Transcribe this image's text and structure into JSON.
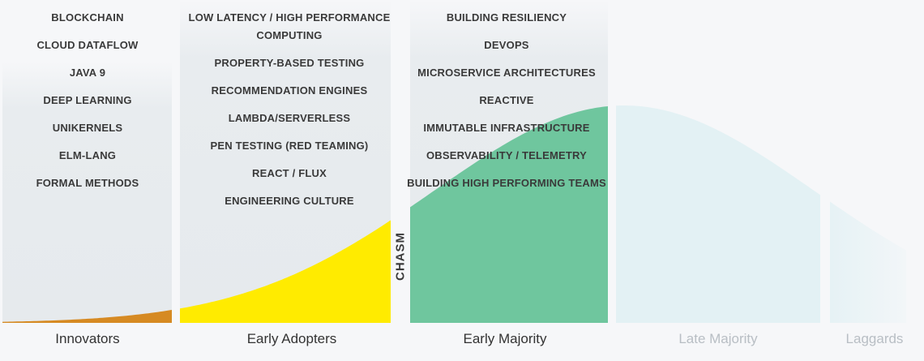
{
  "colors": {
    "innovators": "#d68a23",
    "early_adopters": "#ffeb00",
    "early_majority": "#6fc69e",
    "late_majority": "#e3f1f4",
    "laggards": "#e6f2f5",
    "column_bg": "#e6eaed",
    "text": "#3a3a3a",
    "faded_text": "#b8bec4"
  },
  "chasm_label": "CHASM",
  "segments": [
    {
      "id": "innovators",
      "label": "Innovators",
      "topics": [
        "BLOCKCHAIN",
        "CLOUD DATAFLOW",
        "JAVA 9",
        "DEEP LEARNING",
        "UNIKERNELS",
        "ELM-LANG",
        "FORMAL METHODS"
      ]
    },
    {
      "id": "early-adopters",
      "label": "Early Adopters",
      "topics": [
        "LOW LATENCY / HIGH PERFORMANCE",
        "COMPUTING",
        "PROPERTY-BASED TESTING",
        "RECOMMENDATION ENGINES",
        "LAMBDA/SERVERLESS",
        "PEN TESTING (RED TEAMING)",
        "REACT / FLUX",
        "ENGINEERING CULTURE"
      ]
    },
    {
      "id": "early-majority",
      "label": "Early Majority",
      "topics": [
        "BUILDING RESILIENCY",
        "DEVOPS",
        "MICROSERVICE ARCHITECTURES",
        "REACTIVE",
        "IMMUTABLE INFRASTRUCTURE",
        "OBSERVABILITY / TELEMETRY",
        "BUILDING HIGH PERFORMING TEAMS"
      ]
    },
    {
      "id": "late-majority",
      "label": "Late Majority",
      "topics": []
    },
    {
      "id": "laggards",
      "label": "Laggards",
      "topics": []
    }
  ]
}
